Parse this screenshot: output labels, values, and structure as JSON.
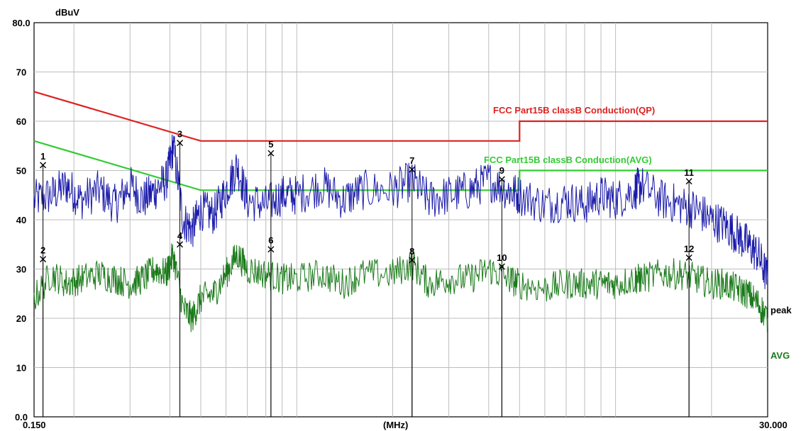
{
  "chart_data": {
    "type": "line",
    "x_scale": "log",
    "xlim": [
      0.15,
      30.0
    ],
    "ylim": [
      0.0,
      80.0
    ],
    "grid": true,
    "y_ticks": [
      {
        "value": 80,
        "label": "80.0"
      },
      {
        "value": 70,
        "label": "70"
      },
      {
        "value": 60,
        "label": "60"
      },
      {
        "value": 50,
        "label": "50"
      },
      {
        "value": 40,
        "label": "40"
      },
      {
        "value": 30,
        "label": "30"
      },
      {
        "value": 20,
        "label": "20"
      },
      {
        "value": 10,
        "label": "10"
      },
      {
        "value": 0,
        "label": "0.0"
      }
    ],
    "x_tick_labels": {
      "left": "0.150",
      "center": "(MHz)",
      "right": "30.000"
    },
    "ylabel": "dBuV",
    "limits": [
      {
        "name": "FCC  Part15B classB Conduction(QP)",
        "color": "#dd2222",
        "x": [
          0.15,
          0.5,
          5.0,
          5.0,
          30.0
        ],
        "y": [
          66,
          56,
          56,
          60,
          60
        ]
      },
      {
        "name": "FCC  Part15B classB Conduction(AVG)",
        "color": "#33cc33",
        "x": [
          0.15,
          0.5,
          5.0,
          5.0,
          30.0
        ],
        "y": [
          56,
          46,
          46,
          50,
          50
        ]
      }
    ],
    "series": [
      {
        "name": "peak",
        "color": "#1a1aaa",
        "x": [
          0.15,
          0.17,
          0.19,
          0.21,
          0.24,
          0.27,
          0.3,
          0.33,
          0.36,
          0.39,
          0.41,
          0.44,
          0.47,
          0.5,
          0.55,
          0.6,
          0.65,
          0.7,
          0.8,
          0.9,
          1.0,
          1.2,
          1.4,
          1.6,
          2.0,
          2.3,
          2.6,
          3.0,
          3.5,
          4.0,
          4.6,
          5.0,
          6.0,
          7.0,
          8.0,
          9.0,
          10.0,
          11.5,
          12.0,
          14.0,
          16.0,
          18.0,
          20.0,
          22.0,
          24.0,
          26.0,
          28.0,
          30.0
        ],
        "y": [
          44,
          45,
          47,
          44,
          46,
          43,
          47,
          44,
          46,
          48,
          55,
          40,
          38,
          42,
          41,
          46,
          51,
          44,
          43,
          45,
          45,
          47,
          44,
          46,
          46,
          48,
          44,
          45,
          46,
          48,
          46,
          45,
          43,
          44,
          43,
          45,
          44,
          46,
          47,
          44,
          43,
          42,
          40,
          39,
          37,
          35,
          33,
          28
        ]
      },
      {
        "name": "AVG",
        "color": "#1a7a1a",
        "x": [
          0.15,
          0.17,
          0.19,
          0.21,
          0.24,
          0.27,
          0.3,
          0.33,
          0.36,
          0.39,
          0.41,
          0.44,
          0.47,
          0.5,
          0.55,
          0.6,
          0.65,
          0.7,
          0.8,
          0.9,
          1.0,
          1.2,
          1.4,
          1.6,
          2.0,
          2.3,
          2.6,
          3.0,
          3.5,
          4.0,
          4.6,
          5.0,
          6.0,
          7.0,
          8.0,
          9.0,
          10.0,
          11.5,
          12.0,
          14.0,
          16.0,
          18.0,
          20.0,
          22.0,
          24.0,
          26.0,
          28.0,
          30.0
        ],
        "y": [
          24,
          29,
          27,
          28,
          29,
          28,
          27,
          28,
          30,
          29,
          33,
          22,
          20,
          24,
          25,
          29,
          33,
          30,
          29,
          28,
          28,
          29,
          27,
          29,
          29,
          31,
          27,
          28,
          28,
          30,
          28,
          27,
          26,
          27,
          27,
          27,
          27,
          28,
          28,
          29,
          29,
          28,
          27,
          27,
          26,
          25,
          23,
          20
        ]
      }
    ],
    "markers": [
      {
        "label": "1",
        "x": 0.16,
        "y": 51.1
      },
      {
        "label": "2",
        "x": 0.16,
        "y": 32.0
      },
      {
        "label": "3",
        "x": 0.43,
        "y": 55.6
      },
      {
        "label": "4",
        "x": 0.43,
        "y": 35.0
      },
      {
        "label": "5",
        "x": 0.83,
        "y": 53.5
      },
      {
        "label": "6",
        "x": 0.83,
        "y": 34.0
      },
      {
        "label": "7",
        "x": 2.3,
        "y": 50.2
      },
      {
        "label": "8",
        "x": 2.3,
        "y": 31.8
      },
      {
        "label": "9",
        "x": 4.4,
        "y": 48.2
      },
      {
        "label": "10",
        "x": 4.4,
        "y": 30.5
      },
      {
        "label": "11",
        "x": 17.0,
        "y": 47.8
      },
      {
        "label": "12",
        "x": 17.0,
        "y": 32.3
      }
    ]
  }
}
